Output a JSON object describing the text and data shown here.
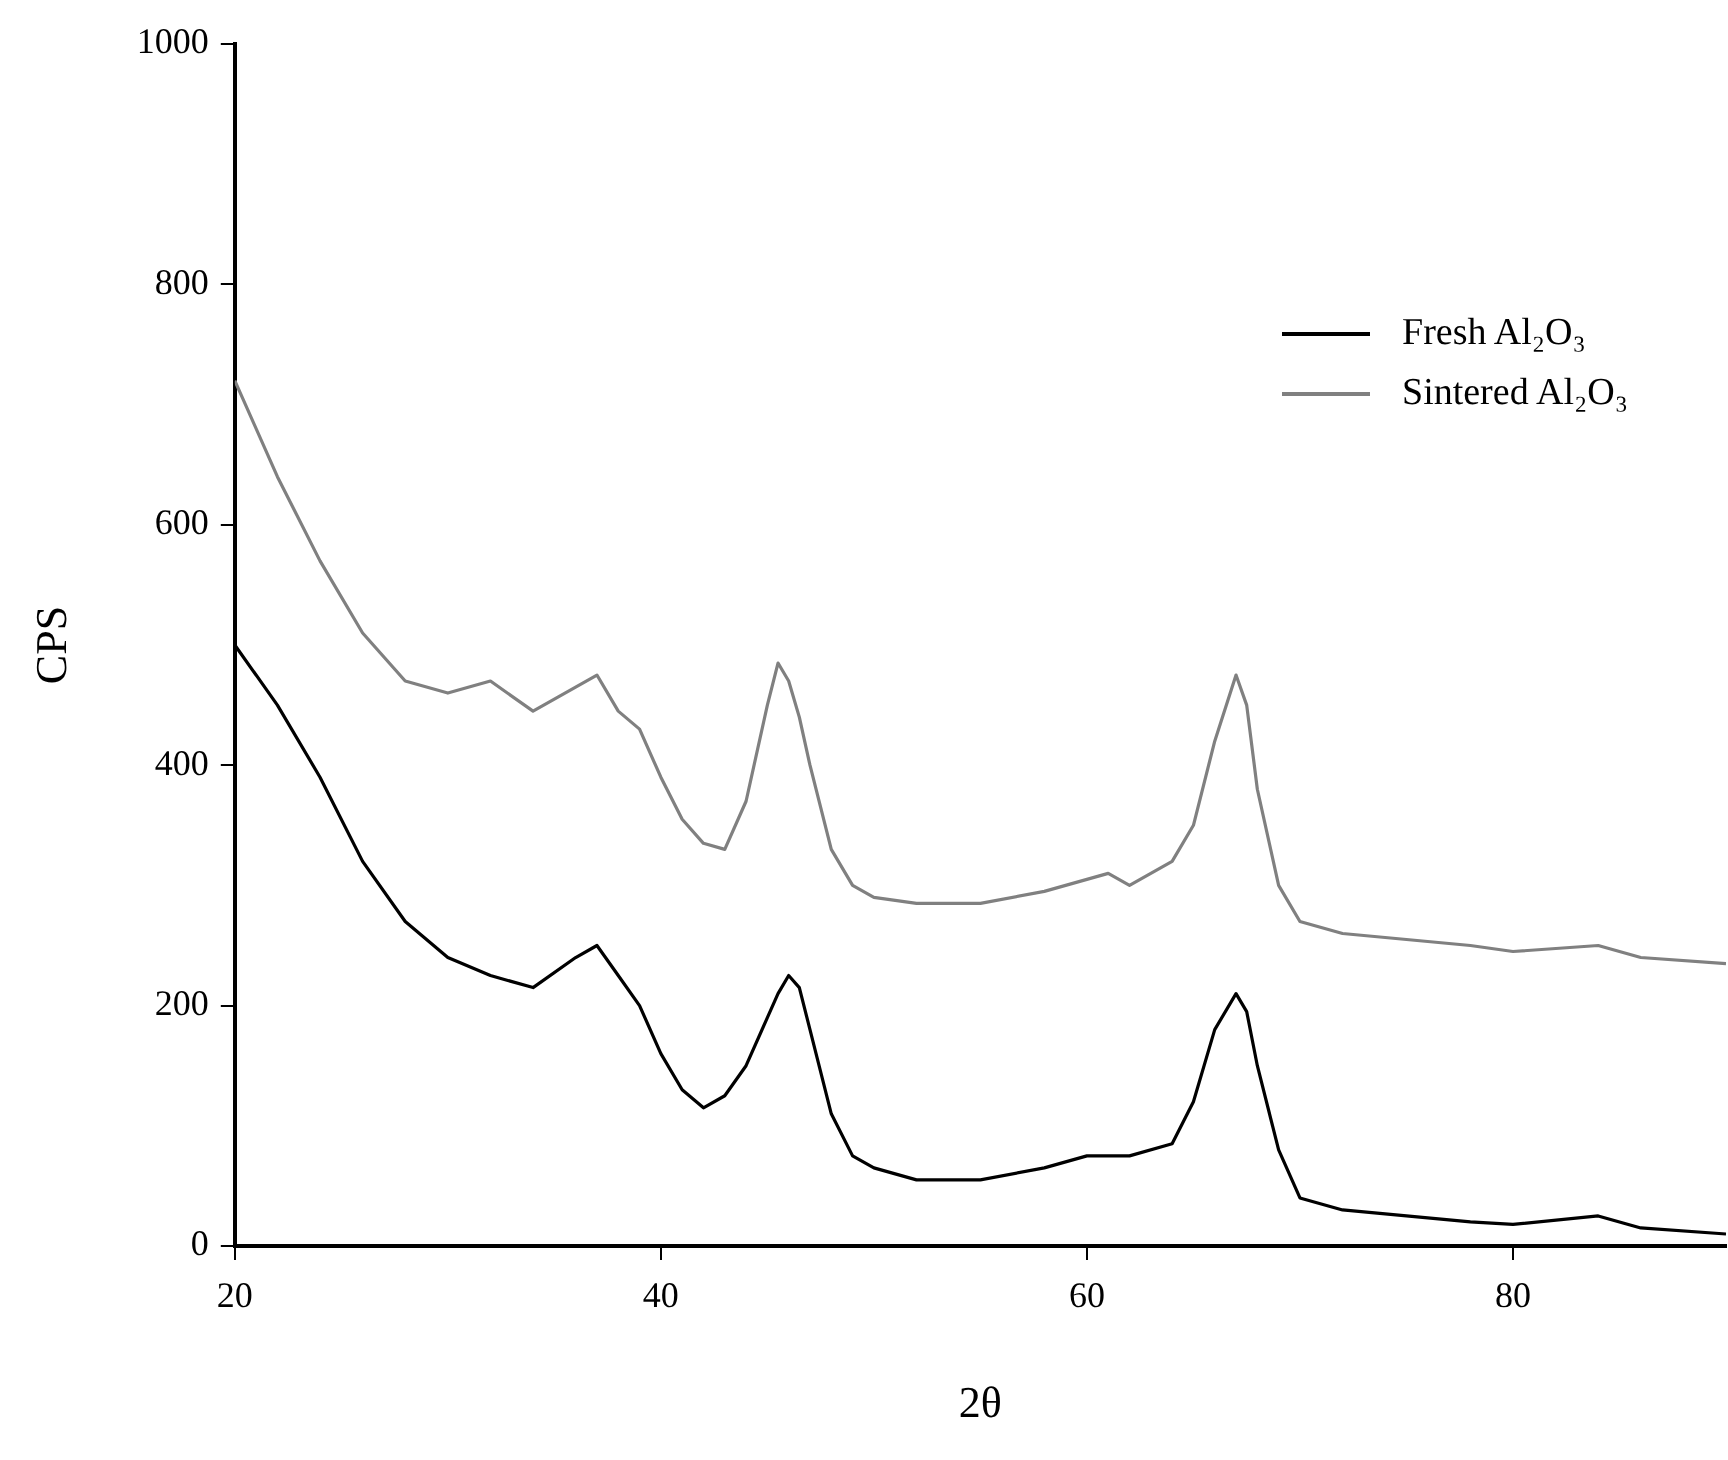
{
  "chart_data": {
    "type": "line",
    "xlabel": "2θ",
    "ylabel": "CPS",
    "x": [
      20,
      22,
      24,
      26,
      28,
      30,
      32,
      34,
      36,
      37,
      38,
      39,
      40,
      41,
      42,
      43,
      44,
      45,
      45.5,
      46,
      46.5,
      47,
      48,
      49,
      50,
      52,
      55,
      58,
      60,
      61,
      62,
      64,
      65,
      66,
      67,
      67.5,
      68,
      69,
      70,
      72,
      75,
      78,
      80,
      84,
      86,
      90
    ],
    "series": [
      {
        "name": "Fresh Al₂O₃",
        "color": "#000000",
        "values": [
          500,
          450,
          390,
          320,
          270,
          240,
          225,
          215,
          240,
          250,
          225,
          200,
          160,
          130,
          115,
          125,
          150,
          190,
          210,
          225,
          215,
          180,
          110,
          75,
          65,
          55,
          55,
          65,
          75,
          75,
          75,
          85,
          120,
          180,
          210,
          195,
          150,
          80,
          40,
          30,
          25,
          20,
          18,
          25,
          15,
          10
        ]
      },
      {
        "name": "Sintered Al₂O₃",
        "color": "#808080",
        "values": [
          720,
          640,
          570,
          510,
          470,
          460,
          470,
          445,
          465,
          475,
          445,
          430,
          390,
          355,
          335,
          330,
          370,
          450,
          485,
          470,
          440,
          400,
          330,
          300,
          290,
          285,
          285,
          295,
          305,
          310,
          300,
          320,
          350,
          420,
          475,
          450,
          380,
          300,
          270,
          260,
          255,
          250,
          245,
          250,
          240,
          235
        ]
      }
    ],
    "xlim": [
      20,
      90
    ],
    "xticks": [
      20,
      40,
      60,
      80
    ],
    "ylim": [
      0,
      1000
    ],
    "yticks": [
      0,
      200,
      400,
      600,
      800,
      1000
    ],
    "grid": false,
    "legend": "top right",
    "marker": "none",
    "line_style": "solid"
  }
}
